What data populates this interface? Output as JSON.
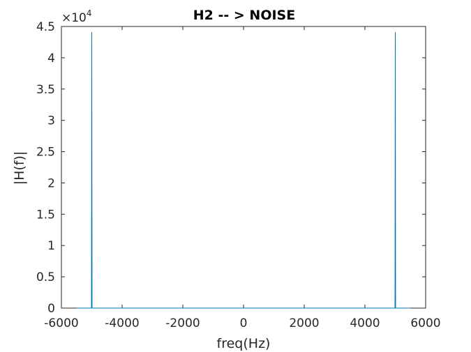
{
  "chart_data": {
    "type": "line",
    "title": "H2 -- > NOISE",
    "xlabel": "freq(Hz)",
    "ylabel": "|H(f)|",
    "xlim": [
      -6000,
      6000
    ],
    "ylim": [
      0,
      45000
    ],
    "x_ticks": [
      -6000,
      -4000,
      -2000,
      0,
      2000,
      4000,
      6000
    ],
    "x_tick_labels": [
      "-6000",
      "-4000",
      "-2000",
      "0",
      "2000",
      "4000",
      "6000"
    ],
    "y_ticks": [
      0,
      5000,
      10000,
      15000,
      20000,
      25000,
      30000,
      35000,
      40000,
      45000
    ],
    "y_tick_labels": [
      "0",
      "0.5",
      "1",
      "1.5",
      "2",
      "2.5",
      "3",
      "3.5",
      "4",
      "4.5"
    ],
    "y_exponent": {
      "base": "×10",
      "power": "4"
    },
    "grid": false,
    "series": [
      {
        "color": "#0072BD",
        "x": [
          -5500,
          -5010,
          -5000,
          -4990,
          4990,
          5000,
          5010,
          5500
        ],
        "y": [
          0,
          0,
          44100,
          0,
          0,
          44100,
          0,
          0
        ]
      }
    ]
  }
}
